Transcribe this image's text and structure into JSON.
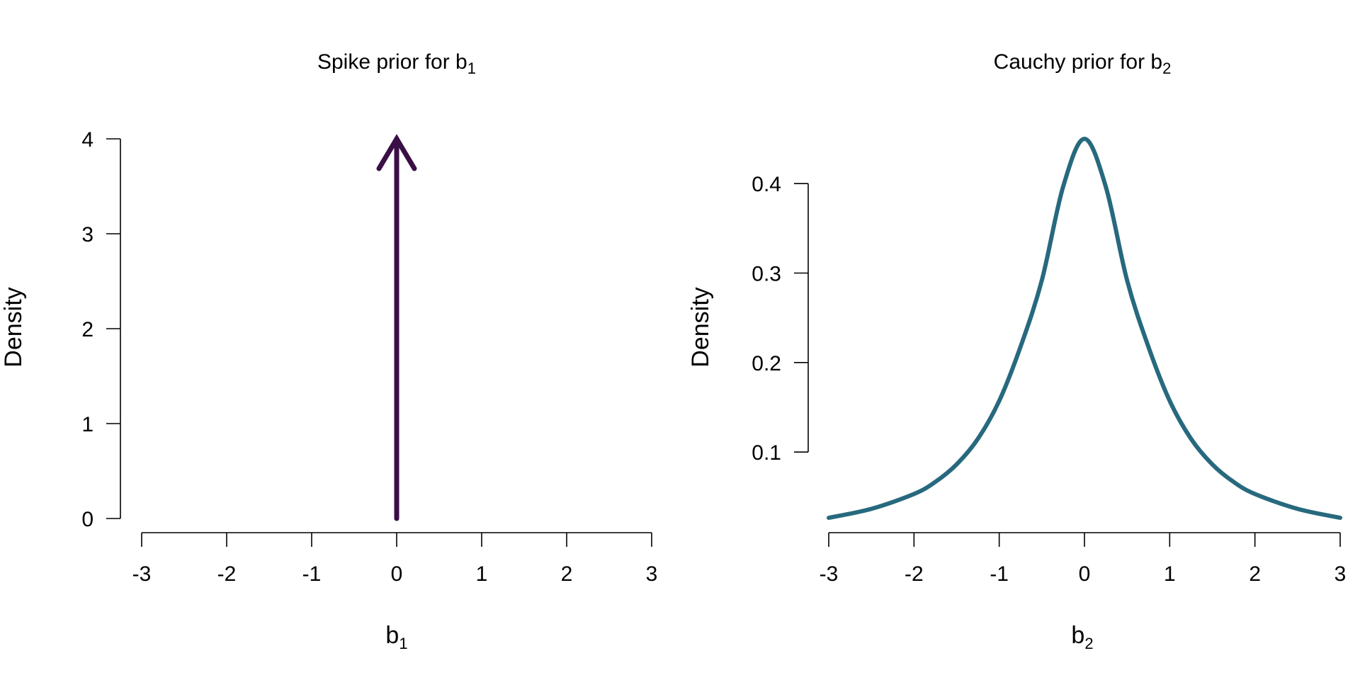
{
  "chart_data": [
    {
      "type": "line",
      "title": "Spike prior for  b",
      "title_subscript": "1",
      "xlabel": "b",
      "xlabel_subscript": "1",
      "ylabel": "Density",
      "xlim": [
        -3,
        3
      ],
      "ylim": [
        0,
        4
      ],
      "x_ticks": [
        -3,
        -2,
        -1,
        0,
        1,
        2,
        3
      ],
      "x_tick_labels": [
        "-3",
        "-2",
        "-1",
        "0",
        "1",
        "2",
        "3"
      ],
      "y_ticks": [
        0,
        1,
        2,
        3,
        4
      ],
      "y_tick_labels": [
        "0",
        "1",
        "2",
        "3",
        "4"
      ],
      "grid": false,
      "color": "#3a0f45",
      "series": [
        {
          "kind": "spike-arrow",
          "x": [
            0,
            0
          ],
          "y": [
            0,
            4
          ]
        }
      ]
    },
    {
      "type": "line",
      "title": "Cauchy prior for  b",
      "title_subscript": "2",
      "xlabel": "b",
      "xlabel_subscript": "2",
      "ylabel": "Density",
      "xlim": [
        -3,
        3
      ],
      "ylim": [
        0.0265,
        0.45
      ],
      "x_ticks": [
        -3,
        -2,
        -1,
        0,
        1,
        2,
        3
      ],
      "x_tick_labels": [
        "-3",
        "-2",
        "-1",
        "0",
        "1",
        "2",
        "3"
      ],
      "y_ticks": [
        0.1,
        0.2,
        0.3,
        0.4
      ],
      "y_tick_labels": [
        "0.1",
        "0.2",
        "0.3",
        "0.4"
      ],
      "grid": false,
      "color": "#27697e",
      "series": [
        {
          "kind": "curve",
          "x": [
            -3,
            -2.5,
            -2,
            -1.75,
            -1.5,
            -1.25,
            -1,
            -0.75,
            -0.5,
            -0.25,
            0,
            0.25,
            0.5,
            0.75,
            1,
            1.25,
            1.5,
            1.75,
            2,
            2.5,
            3
          ],
          "y": [
            0.0265,
            0.0365,
            0.0531,
            0.0666,
            0.0862,
            0.1148,
            0.1572,
            0.2177,
            0.2919,
            0.3966,
            0.45,
            0.3966,
            0.2919,
            0.2177,
            0.1572,
            0.1148,
            0.0862,
            0.0666,
            0.0531,
            0.0365,
            0.0265
          ]
        }
      ]
    }
  ]
}
